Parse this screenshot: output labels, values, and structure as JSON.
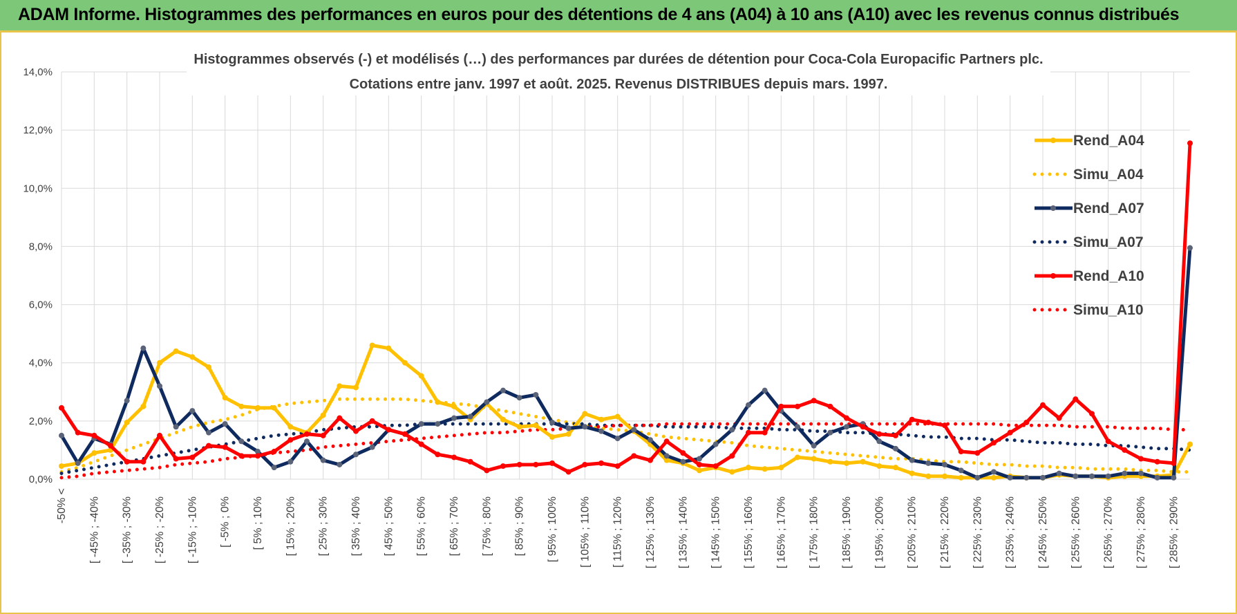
{
  "banner": {
    "title": "ADAM Informe. Histogrammes des performances en euros pour des détentions de 4 ans (A04) à 10 ans (A10) avec les revenus connus distribués"
  },
  "colors": {
    "banner_bg": "#7cc878",
    "frame": "#e8c44a",
    "a04": "#ffc000",
    "a07": "#0f2a5f",
    "a10": "#ff0000",
    "a07_marker": "#5a6378",
    "grid": "#d9d9d9"
  },
  "chart_data": {
    "type": "line",
    "title": "Histogrammes observés (-) et modélisés (…) des performances par durées de détention pour Coca-Cola Europacific Partners plc.",
    "subtitle": "Cotations entre janv. 1997 et août. 2025. Revenus DISTRIBUES depuis mars. 1997.",
    "ylim": [
      0,
      14
    ],
    "y_tick_labels": [
      "0,0%",
      "2,0%",
      "4,0%",
      "6,0%",
      "8,0%",
      "10,0%",
      "12,0%",
      "14,0%"
    ],
    "x_tick_labels": [
      "-50% <",
      "[ -45% ; -40%",
      "[ -35% ; -30%",
      "[ -25% ; -20%",
      "[ -15% ; -10%",
      "[ -5% ; 0%",
      "[ 5% ; 10%",
      "[ 15% ; 20%",
      "[ 25% ; 30%",
      "[ 35% ; 40%",
      "[ 45% ; 50%",
      "[ 55% ; 60%",
      "[ 65% ; 70%",
      "[ 75% ; 80%",
      "[ 85% ; 90%",
      "[ 95% ; 100%",
      "[ 105% ; 110%",
      "[ 115% ; 120%",
      "[ 125% ; 130%",
      "[ 135% ; 140%",
      "[ 145% ; 150%",
      "[ 155% ; 160%",
      "[ 165% ; 170%",
      "[ 175% ; 180%",
      "[ 185% ; 190%",
      "[ 195% ; 200%",
      "[ 205% ; 210%",
      "[ 215% ; 220%",
      "[ 225% ; 230%",
      "[ 235% ; 240%",
      "[ 245% ; 250%",
      "[ 255% ; 260%",
      "[ 265% ; 270%",
      "[ 275% ; 280%",
      "[ 285% ; 290%"
    ],
    "num_categories": 70,
    "legend_position": "right",
    "grid": true,
    "series": [
      {
        "name": "Rend_A04",
        "style": "solid",
        "color": "#ffc000",
        "values": [
          0.45,
          0.55,
          0.9,
          1.0,
          1.95,
          2.5,
          4.0,
          4.4,
          4.2,
          3.85,
          2.8,
          2.5,
          2.45,
          2.45,
          1.8,
          1.6,
          2.2,
          3.2,
          3.15,
          4.6,
          4.5,
          4.0,
          3.55,
          2.65,
          2.5,
          2.05,
          2.6,
          2.05,
          1.8,
          1.85,
          1.45,
          1.55,
          2.25,
          2.05,
          2.15,
          1.65,
          1.2,
          0.65,
          0.55,
          0.3,
          0.4,
          0.25,
          0.4,
          0.35,
          0.4,
          0.75,
          0.7,
          0.6,
          0.55,
          0.6,
          0.45,
          0.4,
          0.2,
          0.1,
          0.1,
          0.05,
          0.05,
          0.05,
          0.1,
          0.05,
          0.05,
          0.15,
          0.1,
          0.1,
          0.05,
          0.1,
          0.1,
          0.1,
          0.15,
          1.2
        ]
      },
      {
        "name": "Simu_A04",
        "style": "dotted",
        "color": "#ffc000",
        "values": [
          0.25,
          0.4,
          0.6,
          0.8,
          1.0,
          1.2,
          1.4,
          1.6,
          1.8,
          1.95,
          2.05,
          2.2,
          2.4,
          2.5,
          2.6,
          2.65,
          2.7,
          2.75,
          2.75,
          2.75,
          2.75,
          2.75,
          2.7,
          2.65,
          2.6,
          2.55,
          2.45,
          2.35,
          2.25,
          2.15,
          2.05,
          1.95,
          1.85,
          1.75,
          1.7,
          1.65,
          1.55,
          1.45,
          1.4,
          1.35,
          1.3,
          1.25,
          1.15,
          1.1,
          1.05,
          1.0,
          0.95,
          0.9,
          0.85,
          0.8,
          0.75,
          0.7,
          0.7,
          0.65,
          0.6,
          0.6,
          0.55,
          0.5,
          0.5,
          0.45,
          0.45,
          0.4,
          0.4,
          0.35,
          0.35,
          0.35,
          0.3,
          0.3,
          0.25,
          0.25
        ]
      },
      {
        "name": "Rend_A07",
        "style": "solid",
        "color": "#0f2a5f",
        "values": [
          1.5,
          0.55,
          1.4,
          1.2,
          2.7,
          4.5,
          3.2,
          1.8,
          2.35,
          1.6,
          1.9,
          1.3,
          0.95,
          0.4,
          0.6,
          1.3,
          0.65,
          0.5,
          0.85,
          1.1,
          1.7,
          1.55,
          1.9,
          1.9,
          2.1,
          2.15,
          2.65,
          3.05,
          2.8,
          2.9,
          1.95,
          1.75,
          1.8,
          1.65,
          1.4,
          1.7,
          1.35,
          0.8,
          0.6,
          0.7,
          1.2,
          1.7,
          2.55,
          3.05,
          2.35,
          1.8,
          1.15,
          1.6,
          1.8,
          1.9,
          1.3,
          1.05,
          0.65,
          0.55,
          0.5,
          0.3,
          0.05,
          0.25,
          0.05,
          0.05,
          0.05,
          0.2,
          0.1,
          0.1,
          0.1,
          0.2,
          0.2,
          0.05,
          0.05,
          7.95
        ]
      },
      {
        "name": "Simu_A07",
        "style": "dotted",
        "color": "#0f2a5f",
        "values": [
          0.2,
          0.3,
          0.4,
          0.5,
          0.6,
          0.7,
          0.8,
          0.9,
          1.0,
          1.1,
          1.2,
          1.3,
          1.4,
          1.5,
          1.55,
          1.6,
          1.7,
          1.75,
          1.8,
          1.8,
          1.85,
          1.85,
          1.9,
          1.9,
          1.9,
          1.9,
          1.9,
          1.9,
          1.9,
          1.9,
          1.9,
          1.9,
          1.9,
          1.85,
          1.85,
          1.85,
          1.85,
          1.8,
          1.8,
          1.8,
          1.8,
          1.75,
          1.75,
          1.75,
          1.7,
          1.7,
          1.65,
          1.65,
          1.6,
          1.6,
          1.55,
          1.55,
          1.5,
          1.45,
          1.45,
          1.4,
          1.4,
          1.35,
          1.35,
          1.3,
          1.25,
          1.25,
          1.2,
          1.2,
          1.15,
          1.15,
          1.1,
          1.05,
          1.05,
          1.0
        ]
      },
      {
        "name": "Rend_A10",
        "style": "solid",
        "color": "#ff0000",
        "values": [
          2.45,
          1.6,
          1.5,
          1.15,
          0.6,
          0.6,
          1.5,
          0.7,
          0.75,
          1.15,
          1.1,
          0.8,
          0.8,
          0.95,
          1.35,
          1.55,
          1.5,
          2.1,
          1.65,
          2.0,
          1.7,
          1.55,
          1.2,
          0.85,
          0.75,
          0.6,
          0.3,
          0.45,
          0.5,
          0.5,
          0.55,
          0.25,
          0.5,
          0.55,
          0.45,
          0.8,
          0.65,
          1.3,
          0.9,
          0.5,
          0.45,
          0.8,
          1.6,
          1.6,
          2.5,
          2.5,
          2.7,
          2.5,
          2.1,
          1.8,
          1.55,
          1.5,
          2.05,
          1.95,
          1.85,
          0.95,
          0.9,
          1.25,
          1.6,
          1.95,
          2.55,
          2.1,
          2.75,
          2.25,
          1.3,
          1.0,
          0.7,
          0.6,
          0.55,
          11.55
        ]
      },
      {
        "name": "Simu_A10",
        "style": "dotted",
        "color": "#ff0000",
        "values": [
          0.05,
          0.1,
          0.2,
          0.25,
          0.3,
          0.35,
          0.4,
          0.5,
          0.55,
          0.6,
          0.7,
          0.75,
          0.8,
          0.9,
          0.95,
          1.0,
          1.1,
          1.15,
          1.2,
          1.25,
          1.3,
          1.35,
          1.4,
          1.45,
          1.5,
          1.55,
          1.6,
          1.6,
          1.65,
          1.7,
          1.7,
          1.75,
          1.8,
          1.8,
          1.85,
          1.85,
          1.85,
          1.9,
          1.9,
          1.9,
          1.9,
          1.9,
          1.9,
          1.9,
          1.9,
          1.9,
          1.9,
          1.9,
          1.9,
          1.9,
          1.9,
          1.9,
          1.9,
          1.9,
          1.9,
          1.9,
          1.9,
          1.9,
          1.85,
          1.85,
          1.85,
          1.85,
          1.8,
          1.8,
          1.8,
          1.75,
          1.75,
          1.75,
          1.7,
          1.7
        ]
      }
    ]
  }
}
